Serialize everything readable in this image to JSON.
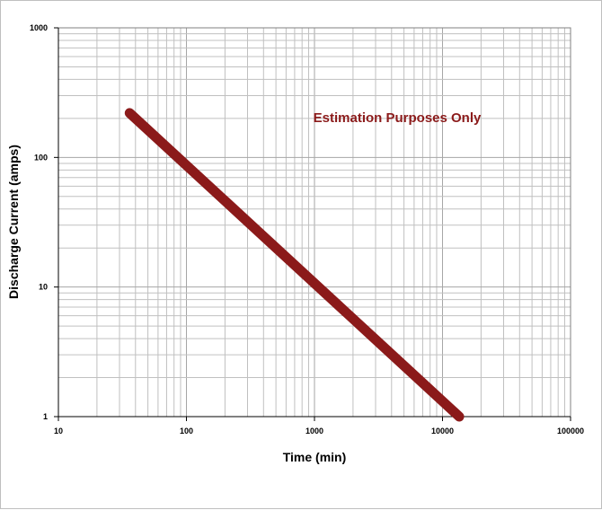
{
  "chart_data": {
    "type": "line",
    "xscale": "log",
    "yscale": "log",
    "xlim": [
      10,
      100000
    ],
    "ylim": [
      1,
      1000
    ],
    "grid": true,
    "xlabel": "Time (min)",
    "ylabel": "Discharge Current (amps)",
    "x_ticks": [
      "10",
      "100",
      "1000",
      "10000",
      "100000"
    ],
    "y_ticks": [
      "1",
      "10",
      "100",
      "1000"
    ],
    "annotation": "Estimation Purposes Only",
    "series": [
      {
        "points": [
          [
            36,
            220
          ],
          [
            13500,
            1
          ]
        ]
      }
    ],
    "colors": {
      "line": "#8b1a1a",
      "annotation": "#8b1a1a",
      "grid": "#c0c0c0",
      "axis": "#000000"
    }
  }
}
